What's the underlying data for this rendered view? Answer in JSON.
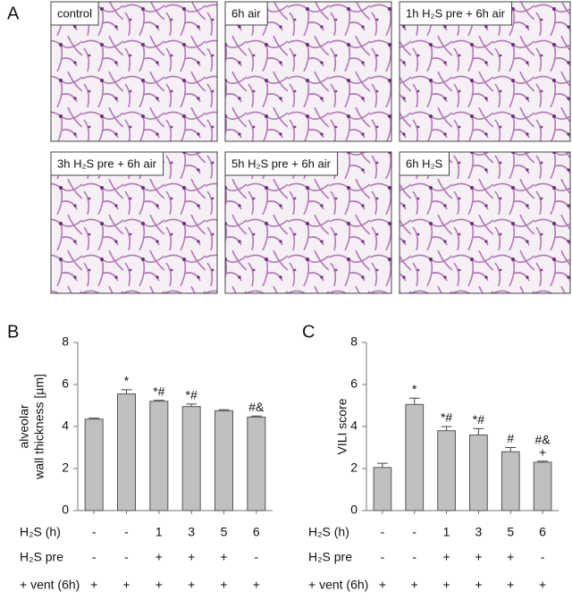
{
  "panel_a": {
    "letter": "A",
    "images": [
      "control",
      "6h air",
      "1h H₂S pre + 6h air",
      "3h H₂S pre + 6h air",
      "5h H₂S pre + 6h air",
      "6h H₂S"
    ]
  },
  "chart_data": [
    {
      "type": "bar",
      "letter": "B",
      "ylabel": [
        "alveolar",
        "wall thickness [µm]"
      ],
      "color": "#c0c0c0",
      "categories": [
        null,
        null,
        null,
        null,
        null,
        null
      ],
      "values": [
        4.35,
        5.55,
        5.2,
        4.95,
        4.75,
        4.45
      ],
      "errors": [
        0.05,
        0.2,
        0.05,
        0.12,
        0.05,
        0.05
      ],
      "annotations": [
        null,
        [
          "*"
        ],
        [
          "*#"
        ],
        [
          "*#"
        ],
        null,
        [
          "#&"
        ]
      ],
      "ylim": [
        0,
        8
      ],
      "yticks": [
        0,
        2,
        4,
        6,
        8
      ],
      "conditions": [
        {
          "label": "H₂S (h)",
          "values": [
            "-",
            "-",
            "1",
            "3",
            "5",
            "6"
          ]
        },
        {
          "label": "H₂S pre",
          "values": [
            "-",
            "-",
            "+",
            "+",
            "+",
            "-"
          ]
        },
        {
          "label": "+ vent (6h)",
          "values": [
            "+",
            "+",
            "+",
            "+",
            "+",
            "+"
          ]
        }
      ]
    },
    {
      "type": "bar",
      "letter": "C",
      "ylabel": [
        "VILI score"
      ],
      "color": "#c0c0c0",
      "categories": [
        null,
        null,
        null,
        null,
        null,
        null
      ],
      "values": [
        2.05,
        5.05,
        3.8,
        3.6,
        2.8,
        2.3
      ],
      "errors": [
        0.2,
        0.3,
        0.2,
        0.3,
        0.2,
        0.05
      ],
      "annotations": [
        null,
        [
          "*"
        ],
        [
          "*#"
        ],
        [
          "*#"
        ],
        [
          "#"
        ],
        [
          "#&",
          "+"
        ]
      ],
      "ylim": [
        0,
        8
      ],
      "yticks": [
        0,
        2,
        4,
        6,
        8
      ],
      "conditions": [
        {
          "label": "H₂S (h)",
          "values": [
            "-",
            "-",
            "1",
            "3",
            "5",
            "6"
          ]
        },
        {
          "label": "H₂S pre",
          "values": [
            "-",
            "-",
            "+",
            "+",
            "+",
            "-"
          ]
        },
        {
          "label": "+ vent (6h)",
          "values": [
            "+",
            "+",
            "+",
            "+",
            "+",
            "+"
          ]
        }
      ]
    }
  ]
}
